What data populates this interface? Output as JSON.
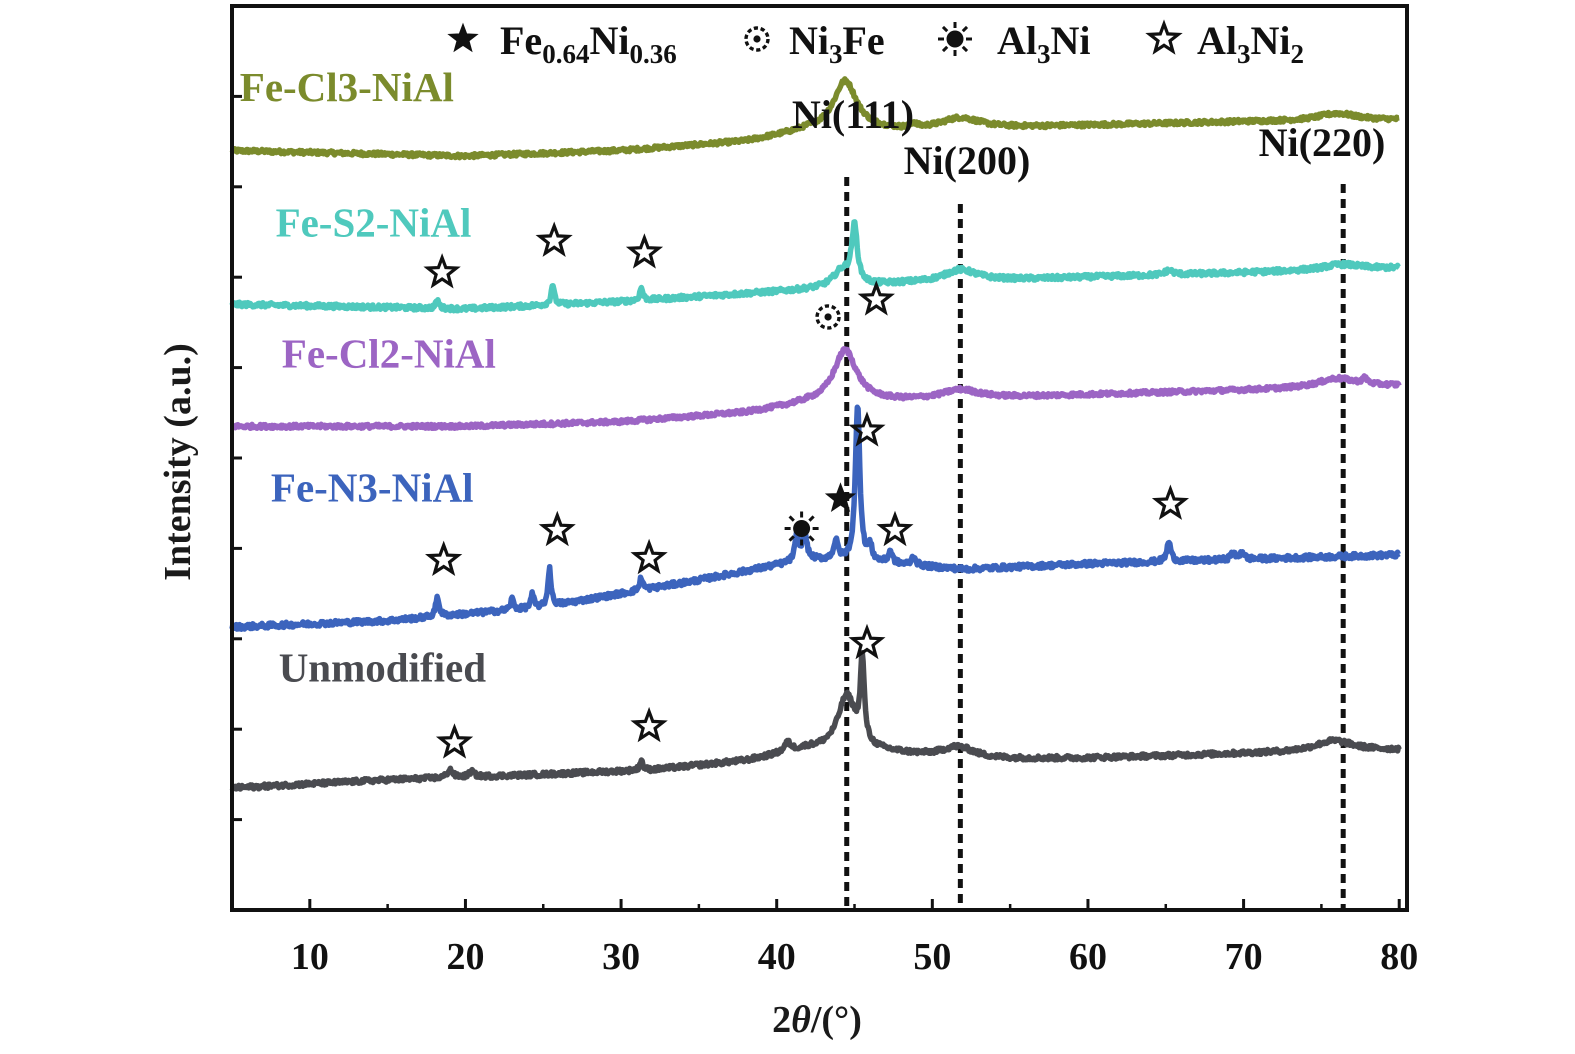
{
  "chart_data": {
    "type": "line",
    "title": "",
    "xlabel": "2θ/(°)",
    "ylabel": "Intensity (a.u.)",
    "xlim": [
      5,
      80.5
    ],
    "ylim": [
      0,
      100
    ],
    "xticks": [
      "10",
      "20",
      "30",
      "40",
      "50",
      "60",
      "70",
      "80"
    ],
    "xtick_values": [
      10,
      20,
      30,
      40,
      50,
      60,
      70,
      80
    ],
    "minor_xticks": [
      15,
      25,
      35,
      45,
      55,
      65,
      75
    ],
    "yticks_unlabeled": [
      10,
      20,
      30,
      40,
      50,
      60,
      70,
      80,
      90
    ],
    "grid": false,
    "legend": {
      "placement": "top",
      "entries": [
        {
          "symbol": "filled-star",
          "base1": "Fe",
          "sub1": "0.64",
          "base2": "Ni",
          "sub2": "0.36"
        },
        {
          "symbol": "gear-circle",
          "base1": "Ni",
          "sub1": "3",
          "base2": "Fe",
          "sub2": ""
        },
        {
          "symbol": "sun",
          "base1": "Al",
          "sub1": "3",
          "base2": "Ni",
          "sub2": ""
        },
        {
          "symbol": "open-star",
          "base1": "Al",
          "sub1": "3",
          "base2": "Ni",
          "sub2": "2"
        }
      ]
    },
    "reference_lines": [
      {
        "x": 44.5,
        "label": "Ni(111)"
      },
      {
        "x": 51.8,
        "label": "Ni(200)"
      },
      {
        "x": 76.4,
        "label": "Ni(220)"
      }
    ],
    "series": [
      {
        "name": "Fe-Cl3-NiAl",
        "color": "#7b8b2c",
        "label_x": 5.5,
        "label_y": 89.5,
        "baseline": [
          [
            5,
            84.0
          ],
          [
            20,
            83.4
          ],
          [
            30,
            84.0
          ],
          [
            38,
            85.0
          ],
          [
            42,
            86.2
          ],
          [
            48,
            86.2
          ],
          [
            60,
            86.8
          ],
          [
            70,
            87.2
          ],
          [
            80,
            87.4
          ]
        ],
        "peaks": [
          [
            44.4,
            5.5,
            0.9
          ],
          [
            51.8,
            1.2,
            1.5
          ],
          [
            76.0,
            0.8,
            1.5
          ],
          [
            48.8,
            0.5,
            0.2
          ]
        ],
        "noise": 0.22,
        "markers": []
      },
      {
        "name": "Fe-S2-NiAl",
        "color": "#4fc9bd",
        "label_x": 7.8,
        "label_y": 74.5,
        "baseline": [
          [
            5,
            67.0
          ],
          [
            20,
            66.5
          ],
          [
            30,
            67.3
          ],
          [
            40,
            68.4
          ],
          [
            48,
            69.3
          ],
          [
            60,
            70.0
          ],
          [
            70,
            70.5
          ],
          [
            80,
            71.0
          ]
        ],
        "peaks": [
          [
            18.2,
            0.9,
            0.12
          ],
          [
            25.6,
            2.3,
            0.12
          ],
          [
            31.3,
            1.4,
            0.12
          ],
          [
            44.2,
            1.8,
            0.7
          ],
          [
            45.0,
            6.2,
            0.22
          ],
          [
            51.8,
            1.3,
            1.3
          ],
          [
            65.2,
            0.5,
            0.3
          ],
          [
            76.3,
            0.6,
            1.5
          ]
        ],
        "noise": 0.25,
        "markers": [
          {
            "symbol": "open-star",
            "x": 18.5,
            "y": 70.5
          },
          {
            "symbol": "open-star",
            "x": 25.7,
            "y": 74.0
          },
          {
            "symbol": "open-star",
            "x": 31.5,
            "y": 72.7
          },
          {
            "symbol": "gear-circle",
            "x": 43.3,
            "y": 65.6
          },
          {
            "symbol": "open-star",
            "x": 46.4,
            "y": 67.5
          }
        ]
      },
      {
        "name": "Fe-Cl2-NiAl",
        "color": "#9c65c4",
        "label_x": 8.2,
        "label_y": 60.0,
        "baseline": [
          [
            5,
            53.5
          ],
          [
            20,
            53.5
          ],
          [
            30,
            54.0
          ],
          [
            38,
            55.0
          ],
          [
            42,
            56.0
          ],
          [
            48,
            56.3
          ],
          [
            60,
            57.0
          ],
          [
            70,
            57.5
          ],
          [
            80,
            58.0
          ]
        ],
        "peaks": [
          [
            44.4,
            5.8,
            0.9
          ],
          [
            51.8,
            1.0,
            1.4
          ],
          [
            76.0,
            1.0,
            1.5
          ],
          [
            77.8,
            0.6,
            0.2
          ]
        ],
        "noise": 0.22,
        "markers": [
          {
            "symbol": "open-star",
            "x": 45.8,
            "y": 53.0
          }
        ]
      },
      {
        "name": "Fe-N3-NiAl",
        "color": "#3c64bd",
        "label_x": 7.5,
        "label_y": 45.2,
        "baseline": [
          [
            5,
            31.3
          ],
          [
            15,
            32.0
          ],
          [
            25,
            33.5
          ],
          [
            35,
            36.5
          ],
          [
            42,
            38.8
          ],
          [
            46,
            38.5
          ],
          [
            52,
            37.7
          ],
          [
            60,
            38.3
          ],
          [
            70,
            38.8
          ],
          [
            80,
            39.3
          ]
        ],
        "peaks": [
          [
            18.2,
            2.2,
            0.13
          ],
          [
            23.0,
            1.2,
            0.12
          ],
          [
            24.3,
            1.5,
            0.12
          ],
          [
            25.4,
            4.2,
            0.12
          ],
          [
            31.3,
            1.4,
            0.12
          ],
          [
            41.3,
            2.8,
            0.15
          ],
          [
            41.8,
            3.0,
            0.15
          ],
          [
            43.8,
            2.0,
            0.18
          ],
          [
            45.2,
            17.5,
            0.17
          ],
          [
            46.0,
            1.5,
            0.15
          ],
          [
            47.3,
            1.3,
            0.15
          ],
          [
            48.8,
            1.0,
            0.15
          ],
          [
            65.2,
            2.2,
            0.15
          ],
          [
            69.3,
            0.8,
            0.15
          ],
          [
            69.9,
            0.9,
            0.15
          ]
        ],
        "noise": 0.28,
        "markers": [
          {
            "symbol": "open-star",
            "x": 18.6,
            "y": 38.7
          },
          {
            "symbol": "open-star",
            "x": 25.9,
            "y": 42.0
          },
          {
            "symbol": "open-star",
            "x": 31.8,
            "y": 38.9
          },
          {
            "symbol": "sun",
            "x": 41.6,
            "y": 42.2
          },
          {
            "symbol": "filled-star",
            "x": 44.1,
            "y": 45.5
          },
          {
            "symbol": "open-star",
            "x": 47.6,
            "y": 42.0
          },
          {
            "symbol": "open-star",
            "x": 65.3,
            "y": 44.9
          }
        ]
      },
      {
        "name": "Unmodified",
        "color": "#4a4b50",
        "label_x": 8.0,
        "label_y": 25.3,
        "baseline": [
          [
            5,
            13.5
          ],
          [
            15,
            14.4
          ],
          [
            25,
            15.0
          ],
          [
            32,
            15.5
          ],
          [
            38,
            16.5
          ],
          [
            42,
            17.8
          ],
          [
            47,
            17.4
          ],
          [
            52,
            16.6
          ],
          [
            60,
            16.8
          ],
          [
            70,
            17.3
          ],
          [
            80,
            17.7
          ]
        ],
        "peaks": [
          [
            19.0,
            0.9,
            0.2
          ],
          [
            20.4,
            0.6,
            0.2
          ],
          [
            31.3,
            1.1,
            0.12
          ],
          [
            40.7,
            1.0,
            0.25
          ],
          [
            44.5,
            6.0,
            0.7
          ],
          [
            45.5,
            9.0,
            0.15
          ],
          [
            51.7,
            1.4,
            1.3
          ],
          [
            75.8,
            1.2,
            1.5
          ]
        ],
        "noise": 0.25,
        "markers": [
          {
            "symbol": "open-star",
            "x": 19.3,
            "y": 18.5
          },
          {
            "symbol": "open-star",
            "x": 31.8,
            "y": 20.3
          },
          {
            "symbol": "open-star",
            "x": 45.8,
            "y": 29.5
          }
        ]
      }
    ]
  }
}
